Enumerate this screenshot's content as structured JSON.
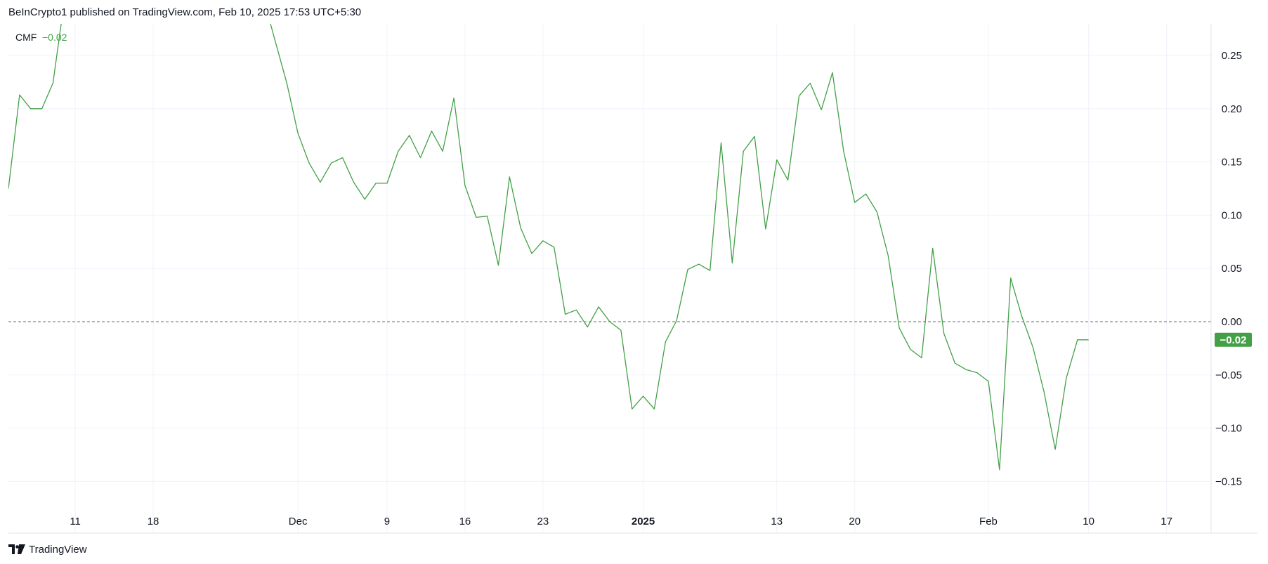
{
  "header": {
    "published_text": "BeInCrypto1 published on TradingView.com, Feb 10, 2025 17:53 UTC+5:30"
  },
  "footer": {
    "brand": "TradingView",
    "logo_icon": "tradingview-logo-icon"
  },
  "chart_data": {
    "type": "line",
    "title": "",
    "indicator": {
      "name": "CMF",
      "value": "−0.02"
    },
    "line_color": "#43a047",
    "badge_color": "#43a047",
    "zero_line": {
      "value": 0,
      "style": "dashed"
    },
    "grid": true,
    "legend_position": "top-left",
    "ylim": [
      -0.175,
      0.28
    ],
    "y_ticks": [
      {
        "value": 0.25,
        "label": "0.25"
      },
      {
        "value": 0.2,
        "label": "0.20"
      },
      {
        "value": 0.15,
        "label": "0.15"
      },
      {
        "value": 0.1,
        "label": "0.10"
      },
      {
        "value": 0.05,
        "label": "0.05"
      },
      {
        "value": 0.0,
        "label": "0.00"
      },
      {
        "value": -0.05,
        "label": "−0.05"
      },
      {
        "value": -0.1,
        "label": "−0.10"
      },
      {
        "value": -0.15,
        "label": "−0.15"
      }
    ],
    "x_domain": [
      "2024-11-05",
      "2025-02-21"
    ],
    "x_ticks": [
      {
        "date": "2024-11-11",
        "label": "11",
        "bold": false
      },
      {
        "date": "2024-11-18",
        "label": "18",
        "bold": false
      },
      {
        "date": "2024-12-01",
        "label": "Dec",
        "bold": false
      },
      {
        "date": "2024-12-09",
        "label": "9",
        "bold": false
      },
      {
        "date": "2024-12-16",
        "label": "16",
        "bold": false
      },
      {
        "date": "2024-12-23",
        "label": "23",
        "bold": false
      },
      {
        "date": "2025-01-01",
        "label": "2025",
        "bold": true
      },
      {
        "date": "2025-01-13",
        "label": "13",
        "bold": false
      },
      {
        "date": "2025-01-20",
        "label": "20",
        "bold": false
      },
      {
        "date": "2025-02-01",
        "label": "Feb",
        "bold": false
      },
      {
        "date": "2025-02-10",
        "label": "10",
        "bold": false
      },
      {
        "date": "2025-02-17",
        "label": "17",
        "bold": false
      }
    ],
    "series": [
      {
        "points": [
          [
            "2024-11-05",
            0.125
          ],
          [
            "2024-11-06",
            0.213
          ],
          [
            "2024-11-07",
            0.2
          ],
          [
            "2024-11-08",
            0.2
          ],
          [
            "2024-11-09",
            0.224
          ],
          [
            "2024-11-10",
            0.3
          ],
          [
            "2024-11-28",
            0.3
          ],
          [
            "2024-11-29",
            0.262
          ],
          [
            "2024-11-30",
            0.224
          ],
          [
            "2024-12-01",
            0.177
          ],
          [
            "2024-12-02",
            0.149
          ],
          [
            "2024-12-03",
            0.131
          ],
          [
            "2024-12-04",
            0.149
          ],
          [
            "2024-12-05",
            0.154
          ],
          [
            "2024-12-06",
            0.131
          ],
          [
            "2024-12-07",
            0.115
          ],
          [
            "2024-12-08",
            0.13
          ],
          [
            "2024-12-09",
            0.13
          ],
          [
            "2024-12-10",
            0.16
          ],
          [
            "2024-12-11",
            0.175
          ],
          [
            "2024-12-12",
            0.154
          ],
          [
            "2024-12-13",
            0.179
          ],
          [
            "2024-12-14",
            0.16
          ],
          [
            "2024-12-15",
            0.21
          ],
          [
            "2024-12-16",
            0.128
          ],
          [
            "2024-12-17",
            0.098
          ],
          [
            "2024-12-18",
            0.099
          ],
          [
            "2024-12-19",
            0.053
          ],
          [
            "2024-12-20",
            0.136
          ],
          [
            "2024-12-21",
            0.088
          ],
          [
            "2024-12-22",
            0.064
          ],
          [
            "2024-12-23",
            0.076
          ],
          [
            "2024-12-24",
            0.07
          ],
          [
            "2024-12-25",
            0.007
          ],
          [
            "2024-12-26",
            0.011
          ],
          [
            "2024-12-27",
            -0.005
          ],
          [
            "2024-12-28",
            0.014
          ],
          [
            "2024-12-29",
            0.0
          ],
          [
            "2024-12-30",
            -0.008
          ],
          [
            "2024-12-31",
            -0.082
          ],
          [
            "2025-01-01",
            -0.07
          ],
          [
            "2025-01-02",
            -0.082
          ],
          [
            "2025-01-03",
            -0.019
          ],
          [
            "2025-01-04",
            0.001
          ],
          [
            "2025-01-05",
            0.049
          ],
          [
            "2025-01-06",
            0.054
          ],
          [
            "2025-01-07",
            0.048
          ],
          [
            "2025-01-08",
            0.168
          ],
          [
            "2025-01-09",
            0.055
          ],
          [
            "2025-01-10",
            0.16
          ],
          [
            "2025-01-11",
            0.174
          ],
          [
            "2025-01-12",
            0.087
          ],
          [
            "2025-01-13",
            0.152
          ],
          [
            "2025-01-14",
            0.133
          ],
          [
            "2025-01-15",
            0.212
          ],
          [
            "2025-01-16",
            0.224
          ],
          [
            "2025-01-17",
            0.199
          ],
          [
            "2025-01-18",
            0.234
          ],
          [
            "2025-01-19",
            0.16
          ],
          [
            "2025-01-20",
            0.112
          ],
          [
            "2025-01-21",
            0.12
          ],
          [
            "2025-01-22",
            0.103
          ],
          [
            "2025-01-23",
            0.062
          ],
          [
            "2025-01-24",
            -0.006
          ],
          [
            "2025-01-25",
            -0.026
          ],
          [
            "2025-01-26",
            -0.034
          ],
          [
            "2025-01-27",
            0.069
          ],
          [
            "2025-01-28",
            -0.011
          ],
          [
            "2025-01-29",
            -0.039
          ],
          [
            "2025-01-30",
            -0.045
          ],
          [
            "2025-01-31",
            -0.048
          ],
          [
            "2025-02-01",
            -0.056
          ],
          [
            "2025-02-02",
            -0.139
          ],
          [
            "2025-02-03",
            0.041
          ],
          [
            "2025-02-04",
            0.005
          ],
          [
            "2025-02-05",
            -0.024
          ],
          [
            "2025-02-06",
            -0.066
          ],
          [
            "2025-02-07",
            -0.12
          ],
          [
            "2025-02-08",
            -0.053
          ],
          [
            "2025-02-09",
            -0.017
          ],
          [
            "2025-02-10",
            -0.017
          ]
        ]
      }
    ]
  }
}
